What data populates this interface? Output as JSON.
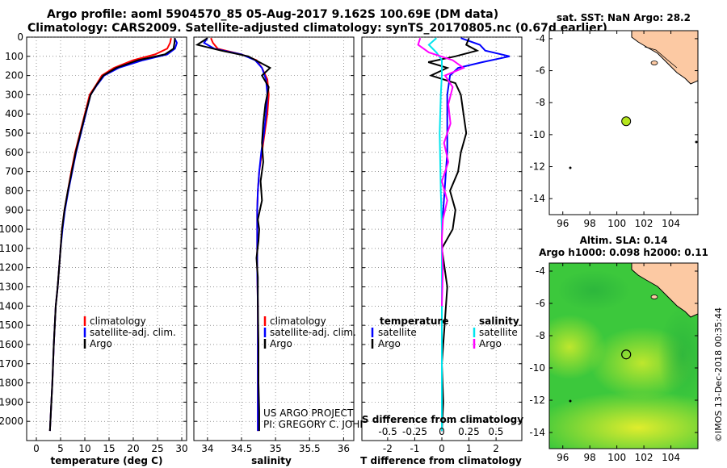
{
  "header": {
    "line1": "Argo profile: aoml 5904570_85 05-Aug-2017 9.162S 100.69E (DM data)",
    "line2": "Climatology: CARS2009. Satellite-adjusted climatology: synTS_20170805.nc (0.67d earlier)"
  },
  "colors": {
    "climatology": "#ff0000",
    "satellite": "#0000ff",
    "argo": "#000000",
    "sat_salinity": "#00e5ee",
    "argo_salinity_diff": "#ff00ff",
    "land": "#fcc9a3",
    "map_ocean": "#3cc83c",
    "marker": "#b5e61d"
  },
  "credits": {
    "project": "US ARGO PROJECT",
    "pi": "PI: GREGORY C. JOHNSON",
    "imos": "©IMOS 13-Dec-2018 00:35:44"
  },
  "chart_data": [
    {
      "id": "temperature",
      "type": "line",
      "xlabel": "temperature (deg C)",
      "ylabel": "",
      "xlim": [
        -2,
        31
      ],
      "ylim": [
        2100,
        0
      ],
      "xticks": [
        0,
        5,
        10,
        15,
        20,
        25,
        30
      ],
      "yticks": [
        0,
        100,
        200,
        300,
        400,
        500,
        600,
        700,
        800,
        900,
        1000,
        1100,
        1200,
        1300,
        1400,
        1500,
        1600,
        1700,
        1800,
        1900,
        2000
      ],
      "grid": true,
      "legend": {
        "placement": "lower-middle",
        "entries": [
          "climatology",
          "satellite-adj. clim.",
          "Argo"
        ]
      },
      "series": [
        {
          "name": "climatology",
          "color": "#ff0000",
          "x": [
            27.8,
            27.6,
            27.0,
            24.5,
            20.0,
            16.0,
            13.5,
            12.3,
            11.0,
            10.0,
            9.0,
            8.0,
            7.2,
            6.5,
            5.8,
            5.3,
            5.0,
            4.7,
            4.4,
            4.0,
            3.6,
            3.3,
            3.0,
            2.8
          ],
          "y": [
            5,
            30,
            60,
            90,
            120,
            160,
            200,
            250,
            300,
            400,
            500,
            600,
            700,
            800,
            900,
            1000,
            1100,
            1200,
            1300,
            1400,
            1600,
            1800,
            1950,
            2050
          ]
        },
        {
          "name": "satellite",
          "color": "#0000ff",
          "x": [
            28.5,
            29.0,
            28.6,
            27.0,
            22.0,
            17.0,
            14.0,
            12.5,
            11.2,
            10.2,
            9.2,
            8.2,
            7.4,
            6.6,
            5.9,
            5.4,
            5.0,
            4.7,
            4.4,
            4.0,
            3.6,
            3.3,
            3.0,
            2.8
          ],
          "y": [
            5,
            30,
            60,
            90,
            120,
            160,
            200,
            250,
            300,
            400,
            500,
            600,
            700,
            800,
            900,
            1000,
            1100,
            1200,
            1300,
            1400,
            1600,
            1800,
            1950,
            2050
          ]
        },
        {
          "name": "Argo",
          "color": "#000000",
          "x": [
            28.6,
            28.5,
            28.3,
            26.5,
            21.0,
            16.5,
            13.8,
            12.4,
            11.2,
            10.1,
            9.1,
            8.1,
            7.3,
            6.5,
            5.8,
            5.3,
            5.0,
            4.7,
            4.4,
            4.0,
            3.6,
            3.3,
            3.0,
            2.8
          ],
          "y": [
            5,
            30,
            60,
            90,
            120,
            160,
            200,
            250,
            300,
            400,
            500,
            600,
            700,
            800,
            900,
            1000,
            1100,
            1200,
            1300,
            1400,
            1600,
            1800,
            1950,
            2050
          ]
        }
      ]
    },
    {
      "id": "salinity",
      "type": "line",
      "xlabel": "salinity",
      "ylabel": "",
      "xlim": [
        33.8,
        36.15
      ],
      "ylim": [
        2100,
        0
      ],
      "xticks": [
        34,
        34.5,
        35,
        35.5,
        36
      ],
      "xticklabels": [
        "34",
        "34.5",
        "35",
        "35.5",
        "36"
      ],
      "grid": true,
      "legend": {
        "placement": "lower-right",
        "entries": [
          "climatology",
          "satellite-adj. clim.",
          "Argo"
        ]
      },
      "series": [
        {
          "name": "climatology",
          "color": "#ff0000",
          "x": [
            34.05,
            34.08,
            34.15,
            34.5,
            34.72,
            34.8,
            34.88,
            34.9,
            34.88,
            34.84,
            34.8,
            34.76,
            34.74,
            34.73,
            34.73,
            34.73,
            34.73,
            34.74,
            34.74,
            34.74,
            34.74
          ],
          "y": [
            5,
            30,
            60,
            90,
            120,
            160,
            220,
            300,
            400,
            500,
            600,
            700,
            800,
            900,
            1000,
            1100,
            1200,
            1400,
            1600,
            1800,
            2050
          ]
        },
        {
          "name": "satellite",
          "color": "#0000ff",
          "x": [
            34.0,
            33.95,
            34.1,
            34.5,
            34.7,
            34.8,
            34.86,
            34.88,
            34.86,
            34.83,
            34.79,
            34.76,
            34.74,
            34.73,
            34.73,
            34.73,
            34.73,
            34.74,
            34.74,
            34.74,
            34.74
          ],
          "y": [
            5,
            30,
            60,
            90,
            120,
            160,
            220,
            300,
            400,
            500,
            600,
            700,
            800,
            900,
            1000,
            1100,
            1200,
            1400,
            1600,
            1800,
            2050
          ]
        },
        {
          "name": "Argo",
          "color": "#000000",
          "x": [
            34.0,
            33.85,
            34.2,
            34.6,
            34.92,
            34.8,
            34.9,
            34.85,
            34.82,
            34.8,
            34.82,
            34.78,
            34.8,
            34.74,
            34.76,
            34.75,
            34.72,
            34.74,
            34.74,
            34.75,
            34.75,
            34.76,
            34.76
          ],
          "y": [
            5,
            40,
            70,
            100,
            160,
            200,
            260,
            350,
            450,
            550,
            650,
            750,
            850,
            950,
            1000,
            1060,
            1150,
            1250,
            1400,
            1600,
            1800,
            1950,
            2050
          ]
        }
      ]
    },
    {
      "id": "difference",
      "type": "line",
      "xlabel": "T difference from climatology",
      "x2label": "S difference from climatology",
      "xlim": [
        -2.95,
        2.95
      ],
      "x2lim": [
        -0.74,
        0.74
      ],
      "ylim": [
        2100,
        0
      ],
      "xticks": [
        -2,
        -1,
        0,
        1,
        2
      ],
      "x2ticks": [
        -0.5,
        -0.25,
        0,
        0.25,
        0.5
      ],
      "x2ticklabels": [
        "-0.5",
        "-0.25",
        "0",
        "0.25",
        "0.5"
      ],
      "grid": true,
      "legend": {
        "placement": "lower",
        "temperature_heading": "temperature",
        "salinity_heading": "salinity",
        "entries": [
          "satellite",
          "Argo",
          "satellite",
          "Argo"
        ]
      },
      "series": [
        {
          "name": "temperature satellite",
          "axis": "T",
          "color": "#0000ff",
          "x": [
            0.7,
            1.4,
            1.6,
            2.5,
            1.5,
            0.6,
            0.3,
            0.2,
            0.2,
            0.2,
            0.2,
            0.15,
            0.1,
            0.05,
            0.0,
            0.0,
            0.0,
            0.0,
            0.0
          ],
          "y": [
            5,
            40,
            70,
            100,
            130,
            160,
            200,
            300,
            400,
            500,
            600,
            700,
            800,
            900,
            1000,
            1200,
            1500,
            1800,
            2050
          ]
        },
        {
          "name": "temperature Argo",
          "axis": "T",
          "color": "#000000",
          "x": [
            1.0,
            0.9,
            1.3,
            0.5,
            -0.5,
            0.2,
            -0.4,
            0.5,
            0.7,
            0.8,
            0.9,
            0.7,
            0.6,
            0.3,
            0.5,
            0.4,
            0.0,
            0.2,
            0.1,
            0.0,
            0.05,
            0.0
          ],
          "y": [
            5,
            40,
            70,
            100,
            130,
            160,
            200,
            240,
            300,
            400,
            500,
            600,
            700,
            800,
            900,
            1000,
            1100,
            1300,
            1500,
            1700,
            1900,
            2050
          ]
        },
        {
          "name": "salinity satellite",
          "axis": "S",
          "color": "#00e5ee",
          "x": [
            -0.05,
            -0.12,
            -0.05,
            0.0,
            0.0,
            -0.01,
            -0.02,
            -0.01,
            0.0,
            0.0,
            0.0,
            0.0
          ],
          "y": [
            5,
            40,
            80,
            120,
            200,
            300,
            500,
            800,
            1000,
            1300,
            1700,
            2050
          ]
        },
        {
          "name": "salinity Argo",
          "axis": "S",
          "color": "#ff00ff",
          "x": [
            -0.2,
            -0.22,
            -0.12,
            0.1,
            0.2,
            0.03,
            0.1,
            0.06,
            0.08,
            0.02,
            0.06,
            0.0,
            0.05,
            0.01,
            0.0,
            0.01,
            0.0
          ],
          "y": [
            5,
            40,
            80,
            120,
            160,
            200,
            260,
            350,
            450,
            550,
            650,
            750,
            850,
            950,
            1050,
            1200,
            1400
          ]
        }
      ]
    },
    {
      "id": "sst-map",
      "type": "scatter",
      "title": "sat. SST: NaN Argo: 28.2",
      "xlim": [
        95,
        106
      ],
      "ylim": [
        -15,
        -3.5
      ],
      "xticks": [
        96,
        98,
        100,
        102,
        104
      ],
      "yticks": [
        -4,
        -6,
        -8,
        -10,
        -12,
        -14
      ],
      "point": {
        "lon": 100.69,
        "lat": -9.162
      }
    },
    {
      "id": "sla-map",
      "type": "heatmap",
      "title_line1": "Altim. SLA: 0.14",
      "title_line2": "Argo h1000: 0.098 h2000: 0.11",
      "xlim": [
        95,
        106
      ],
      "ylim": [
        -15,
        -3.5
      ],
      "xticks": [
        96,
        98,
        100,
        102,
        104
      ],
      "yticks": [
        -4,
        -6,
        -8,
        -10,
        -12,
        -14
      ],
      "point": {
        "lon": 100.69,
        "lat": -9.162
      }
    }
  ]
}
